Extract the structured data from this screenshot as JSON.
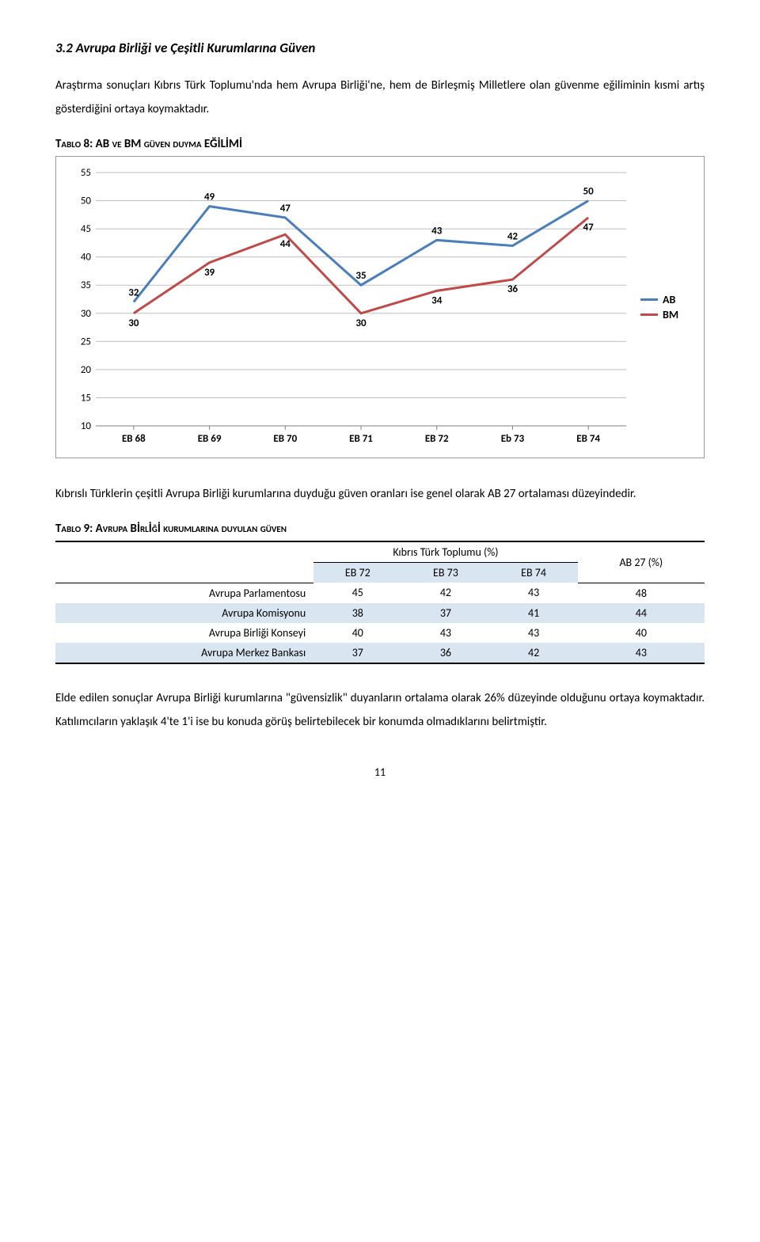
{
  "heading": "3.2  Avrupa Birliği ve Çeşitli Kurumlarına Güven",
  "para1": "Araştırma sonuçları Kıbrıs Türk Toplumu'nda hem Avrupa Birliği'ne, hem de Birleşmiş Milletlere olan güvenme eğiliminin kısmi artış gösterdiğini ortaya koymaktadır.",
  "tablo8_title": "Tablo 8: AB ve BM güven duyma EĞİLİMİ",
  "chart": {
    "y_ticks": [
      10,
      15,
      20,
      25,
      30,
      35,
      40,
      45,
      50,
      55
    ],
    "ylim": [
      10,
      55
    ],
    "categories": [
      "EB 68",
      "EB 69",
      "EB 70",
      "EB 71",
      "EB 72",
      "Eb 73",
      "EB 74"
    ],
    "series": [
      {
        "name": "AB",
        "color": "#4a7ebb",
        "values": [
          32,
          49,
          47,
          35,
          43,
          42,
          50
        ]
      },
      {
        "name": "BM",
        "color": "#be4b48",
        "values": [
          30,
          39,
          44,
          30,
          34,
          36,
          47
        ]
      }
    ],
    "legend_labels": {
      "AB": "AB",
      "BM": "BM"
    }
  },
  "para2": "Kıbrıslı Türklerin çeşitli Avrupa Birliği kurumlarına duyduğu güven oranları ise genel olarak AB 27 ortalaması düzeyindedir.",
  "tablo9_title": "Tablo 9: Avrupa Bİrlİğİ kurumlarına duyulan güven",
  "table9": {
    "group_header": "Kıbrıs Türk Toplumu (%)",
    "ab27_header": "AB 27 (%)",
    "sub_headers": [
      "EB 72",
      "EB 73",
      "EB 74"
    ],
    "rows": [
      {
        "label": "Avrupa Parlamentosu",
        "vals": [
          45,
          42,
          43
        ],
        "ab27": 48,
        "alt": false
      },
      {
        "label": "Avrupa Komisyonu",
        "vals": [
          38,
          37,
          41
        ],
        "ab27": 44,
        "alt": true
      },
      {
        "label": "Avrupa Birliği Konseyi",
        "vals": [
          40,
          43,
          43
        ],
        "ab27": 40,
        "alt": false
      },
      {
        "label": "Avrupa Merkez Bankası",
        "vals": [
          37,
          36,
          42
        ],
        "ab27": 43,
        "alt": true
      }
    ]
  },
  "para3": "Elde edilen sonuçlar Avrupa Birliği kurumlarına \"güvensizlik\" duyanların ortalama olarak 26% düzeyinde olduğunu ortaya koymaktadır. Katılımcıların yaklaşık 4'te 1'i ise bu konuda görüş belirtebilecek bir konumda olmadıklarını belirtmiştir.",
  "page_number": "11"
}
